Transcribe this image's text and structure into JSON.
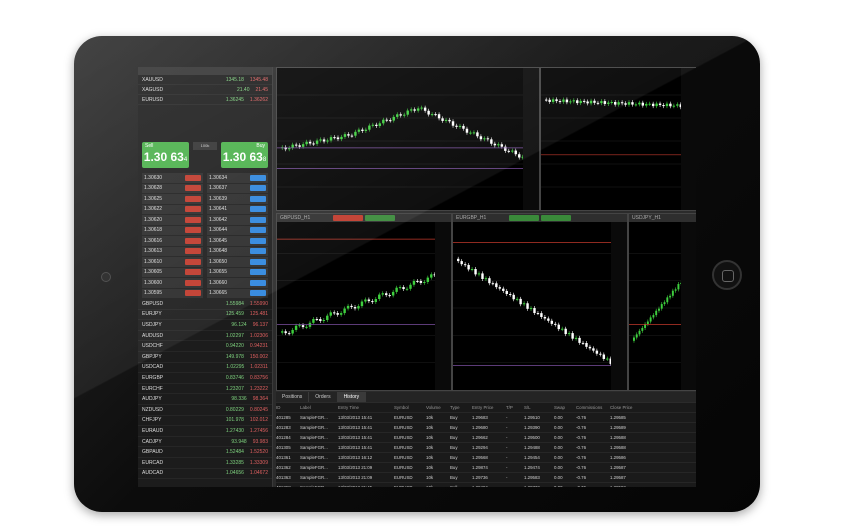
{
  "watchlist_top": [
    {
      "symbol": "XAUUSD",
      "bid": "1345.18",
      "ask": "1345.48"
    },
    {
      "symbol": "XAGUSD",
      "bid": "21.40",
      "ask": "21.45"
    },
    {
      "symbol": "EURUSD",
      "bid": "1.36245",
      "ask": "1.36262"
    }
  ],
  "deal": {
    "sell_label": "Sell",
    "buy_label": "Buy",
    "sell_price": "1.30 63",
    "sell_pip": "4",
    "buy_price": "1.30 63",
    "buy_pip": "8",
    "volume": "100k"
  },
  "ladder": [
    {
      "sell": "1.30630",
      "buy": "1.30634"
    },
    {
      "sell": "1.30628",
      "buy": "1.30637"
    },
    {
      "sell": "1.30625",
      "buy": "1.30639"
    },
    {
      "sell": "1.30622",
      "buy": "1.30641"
    },
    {
      "sell": "1.30620",
      "buy": "1.30642"
    },
    {
      "sell": "1.30618",
      "buy": "1.30644"
    },
    {
      "sell": "1.30616",
      "buy": "1.30645"
    },
    {
      "sell": "1.30613",
      "buy": "1.30648"
    },
    {
      "sell": "1.30610",
      "buy": "1.30650"
    },
    {
      "sell": "1.30605",
      "buy": "1.30655"
    },
    {
      "sell": "1.30600",
      "buy": "1.30660"
    },
    {
      "sell": "1.30595",
      "buy": "1.30665"
    }
  ],
  "watchlist_bottom": [
    {
      "symbol": "GBPUSD",
      "bid": "1.55984",
      "ask": "1.55990"
    },
    {
      "symbol": "EURJPY",
      "bid": "125.459",
      "ask": "125.481"
    },
    {
      "symbol": "USDJPY",
      "bid": "96.124",
      "ask": "96.137"
    },
    {
      "symbol": "AUDUSD",
      "bid": "1.02297",
      "ask": "1.02306"
    },
    {
      "symbol": "USDCHF",
      "bid": "0.94220",
      "ask": "0.94231"
    },
    {
      "symbol": "GBPJPY",
      "bid": "149.978",
      "ask": "150.002"
    },
    {
      "symbol": "USDCAD",
      "bid": "1.02295",
      "ask": "1.02311"
    },
    {
      "symbol": "EURGBP",
      "bid": "0.83746",
      "ask": "0.83756"
    },
    {
      "symbol": "EURCHF",
      "bid": "1.23207",
      "ask": "1.23222"
    },
    {
      "symbol": "AUDJPY",
      "bid": "98.336",
      "ask": "98.364"
    },
    {
      "symbol": "NZDUSD",
      "bid": "0.80229",
      "ask": "0.80245"
    },
    {
      "symbol": "CHFJPY",
      "bid": "101.978",
      "ask": "102.012"
    },
    {
      "symbol": "EURAUD",
      "bid": "1.27430",
      "ask": "1.27456"
    },
    {
      "symbol": "CADJPY",
      "bid": "93.948",
      "ask": "93.983"
    },
    {
      "symbol": "GBPAUD",
      "bid": "1.52484",
      "ask": "1.52520"
    },
    {
      "symbol": "EURCAD",
      "bid": "1.33285",
      "ask": "1.33309"
    },
    {
      "symbol": "AUDCAD",
      "bid": "1.04656",
      "ask": "1.04672"
    }
  ],
  "charts": {
    "gbpusd_title": "GBPUSD_H1",
    "eurgbp_title": "EURGBP_H1",
    "usdjpy_title": "USDJPY_H1"
  },
  "bottom_tabs": [
    "Positions",
    "Orders",
    "History"
  ],
  "history_columns": [
    "ID",
    "Label",
    "Entry Time",
    "Symbol",
    "Volume",
    "Type",
    "Entry Price",
    "T/P",
    "S/L",
    "Swap",
    "Commissions",
    "Close Price"
  ],
  "history_rows": [
    [
      "401285",
      "SampleFGR...",
      "13/03/2013 15:41",
      "EURUSD",
      "10k",
      "Buy",
      "1.29683",
      "-",
      "1.29510",
      "0.00",
      "-0.76",
      "1.29585"
    ],
    [
      "401283",
      "SampleFGR...",
      "13/03/2013 15:41",
      "EURUSD",
      "10k",
      "Buy",
      "1.29680",
      "-",
      "1.29390",
      "0.00",
      "-0.76",
      "1.29589"
    ],
    [
      "401284",
      "SampleFGR...",
      "13/03/2013 15:41",
      "EURUSD",
      "10k",
      "Buy",
      "1.29662",
      "-",
      "1.29500",
      "0.00",
      "-0.76",
      "1.29588"
    ],
    [
      "401305",
      "SampleFGR...",
      "13/03/2013 15:41",
      "EURUSD",
      "10k",
      "Buy",
      "1.29294",
      "-",
      "1.29488",
      "0.00",
      "-0.76",
      "1.29588"
    ],
    [
      "401361",
      "SampleFGR...",
      "13/03/2013 16:12",
      "EURUSD",
      "10k",
      "Buy",
      "1.29568",
      "-",
      "1.29454",
      "0.00",
      "-0.76",
      "1.29586"
    ],
    [
      "401362",
      "SampleFGR...",
      "13/03/2013 21:09",
      "EURUSD",
      "10k",
      "Buy",
      "1.29874",
      "-",
      "1.29474",
      "0.00",
      "-0.76",
      "1.29587"
    ],
    [
      "401363",
      "SampleFGR...",
      "13/03/2013 21:09",
      "EURUSD",
      "10k",
      "Buy",
      "1.29736",
      "-",
      "1.29583",
      "0.00",
      "-0.76",
      "1.29587"
    ],
    [
      "401368",
      "SampleFGR...",
      "13/03/2013 21:45",
      "EURUSD",
      "10k",
      "Sell",
      "1.29484",
      "-",
      "1.29732",
      "0.00",
      "-0.76",
      "1.29592"
    ]
  ],
  "colors": {
    "sell_green": "#4bb14b",
    "buy_green": "#4bb14b",
    "bid_green": "#7fd37f",
    "ask_red": "#e06060",
    "chart_bg": "#000000"
  }
}
